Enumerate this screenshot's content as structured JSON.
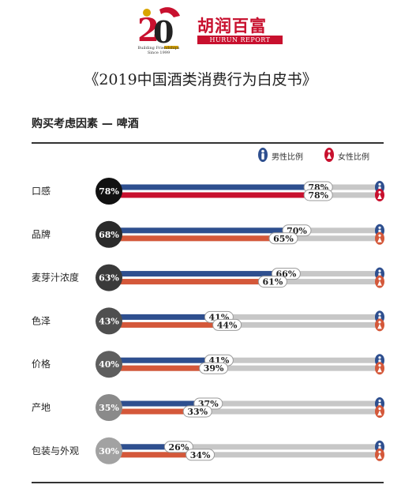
{
  "header": {
    "logo_caption": "Building Friendships\nSince 1999",
    "brand_cn": "胡润百富",
    "brand_en": "HURUN REPORT",
    "title": "《2019中国酒类消费行为白皮书》",
    "subtitle": "购买考虑因素 — 啤酒"
  },
  "legend": {
    "male": "男性比例",
    "female": "女性比例"
  },
  "colors": {
    "male": "#2e4f8f",
    "female": "#c8102e",
    "track": "#c7c7c7",
    "badge_shades": [
      "#111111",
      "#2b2b2b",
      "#3a3a3a",
      "#4f4f4f",
      "#5e5e5e",
      "#8a8a8a",
      "#a2a2a2"
    ],
    "female_shades": [
      "#c8102e",
      "#d4583a",
      "#d4583a",
      "#d4583a",
      "#d4583a",
      "#d4583a",
      "#d4583a"
    ]
  },
  "chart_data": {
    "type": "bar",
    "orientation": "horizontal",
    "categories": [
      "口感",
      "品牌",
      "麦芽汁浓度",
      "色泽",
      "价格",
      "产地",
      "包装与外观"
    ],
    "overall": [
      78,
      68,
      63,
      43,
      40,
      35,
      30
    ],
    "overall_labels": [
      "78%",
      "68%",
      "63%",
      "43%",
      "40%",
      "35%",
      "30%"
    ],
    "series": [
      {
        "name": "男性比例",
        "values": [
          78,
          70,
          66,
          41,
          41,
          37,
          26
        ],
        "labels": [
          "78%",
          "70%",
          "66%",
          "41%",
          "41%",
          "37%",
          "26%"
        ]
      },
      {
        "name": "女性比例",
        "values": [
          78,
          65,
          61,
          44,
          39,
          33,
          34
        ],
        "labels": [
          "78%",
          "65%",
          "61%",
          "44%",
          "39%",
          "33%",
          "34%"
        ]
      }
    ],
    "xlim": [
      0,
      100
    ],
    "title": "购买考虑因素 — 啤酒",
    "xlabel": "",
    "ylabel": "",
    "legend_position": "top-right",
    "grid": false
  }
}
